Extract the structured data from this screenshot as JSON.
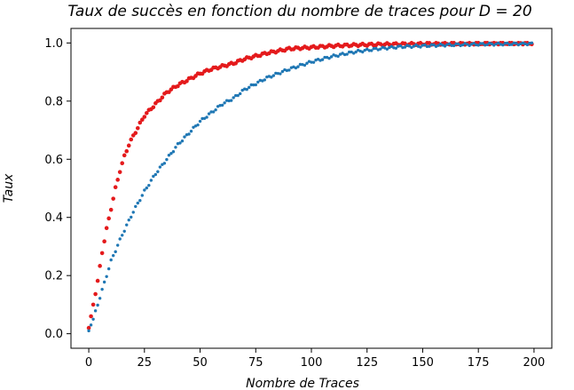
{
  "chart_data": {
    "type": "scatter",
    "title": "Taux de succès en fonction du nombre de traces pour D  =  20",
    "xlabel": "Nombre de Traces",
    "ylabel": "Taux",
    "xlim": [
      -8,
      208
    ],
    "ylim": [
      -0.05,
      1.05
    ],
    "xticks": [
      0,
      25,
      50,
      75,
      100,
      125,
      150,
      175,
      200
    ],
    "yticks": [
      0.0,
      0.2,
      0.4,
      0.6,
      0.8,
      1.0
    ],
    "grid": false,
    "series": [
      {
        "color": "#e41a1c",
        "x": [
          0,
          2,
          4,
          6,
          8,
          10,
          12,
          14,
          16,
          18,
          20,
          25,
          30,
          35,
          40,
          45,
          50,
          55,
          60,
          65,
          70,
          75,
          80,
          90,
          100,
          110,
          120,
          130,
          140,
          150,
          160,
          170,
          180,
          190,
          200
        ],
        "values": [
          0.02,
          0.1,
          0.18,
          0.28,
          0.36,
          0.43,
          0.5,
          0.56,
          0.61,
          0.65,
          0.68,
          0.75,
          0.79,
          0.83,
          0.855,
          0.875,
          0.895,
          0.91,
          0.92,
          0.93,
          0.945,
          0.955,
          0.965,
          0.98,
          0.985,
          0.99,
          0.993,
          0.995,
          0.996,
          0.997,
          0.998,
          0.998,
          0.999,
          0.999,
          0.999
        ]
      },
      {
        "color": "#1f77b4",
        "x": [
          0,
          2,
          4,
          6,
          8,
          10,
          15,
          20,
          25,
          30,
          35,
          40,
          45,
          50,
          55,
          60,
          65,
          70,
          75,
          80,
          85,
          90,
          100,
          110,
          120,
          130,
          140,
          150,
          160,
          170,
          180,
          190,
          200
        ],
        "values": [
          0.01,
          0.05,
          0.1,
          0.15,
          0.2,
          0.25,
          0.34,
          0.42,
          0.49,
          0.55,
          0.6,
          0.65,
          0.69,
          0.73,
          0.76,
          0.79,
          0.81,
          0.84,
          0.86,
          0.88,
          0.895,
          0.91,
          0.935,
          0.955,
          0.97,
          0.98,
          0.987,
          0.99,
          0.993,
          0.995,
          0.996,
          0.997,
          0.998
        ]
      }
    ]
  }
}
